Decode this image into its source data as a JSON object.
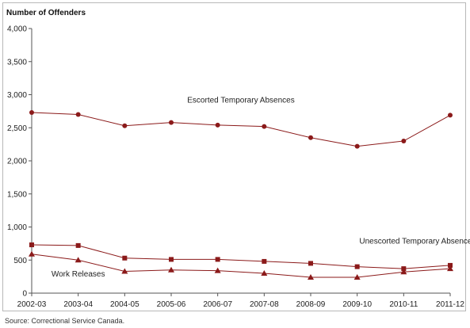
{
  "source": "Source:  Correctional Service Canada.",
  "chart_data": {
    "type": "line",
    "title": "",
    "ylabel": "Number of Offenders",
    "xlabel": "",
    "ylim": [
      0,
      4000
    ],
    "yticks": [
      0,
      500,
      1000,
      1500,
      2000,
      2500,
      3000,
      3500,
      4000
    ],
    "ytick_labels": [
      "0",
      "500",
      "1,000",
      "1,500",
      "2,000",
      "2,500",
      "3,000",
      "3,500",
      "4,000"
    ],
    "grid": false,
    "categories": [
      "2002-03",
      "2003-04",
      "2004-05",
      "2005-06",
      "2006-07",
      "2007-08",
      "2008-09",
      "2009-10",
      "2010-11",
      "2011-12"
    ],
    "line_color": "#8b1a1a",
    "series": [
      {
        "name": "Escorted Temporary Absences",
        "marker": "circle",
        "values": [
          2730,
          2700,
          2530,
          2580,
          2540,
          2520,
          2350,
          2220,
          2300,
          2690
        ]
      },
      {
        "name": "Unescorted Temporary Absences",
        "marker": "square",
        "values": [
          730,
          720,
          530,
          510,
          510,
          480,
          450,
          400,
          370,
          420
        ]
      },
      {
        "name": "Work Releases",
        "marker": "triangle",
        "values": [
          590,
          500,
          330,
          350,
          340,
          300,
          240,
          240,
          320,
          370
        ]
      }
    ],
    "annotations": [
      {
        "series": 0,
        "text": "Escorted Temporary Absences",
        "at_category": 4.5,
        "at_value": 2880
      },
      {
        "series": 1,
        "text": "Unescorted Temporary Absences",
        "at_category": 8.3,
        "at_value": 750
      },
      {
        "series": 2,
        "text": "Work Releases",
        "at_category": 1.0,
        "at_value": 250
      }
    ]
  }
}
